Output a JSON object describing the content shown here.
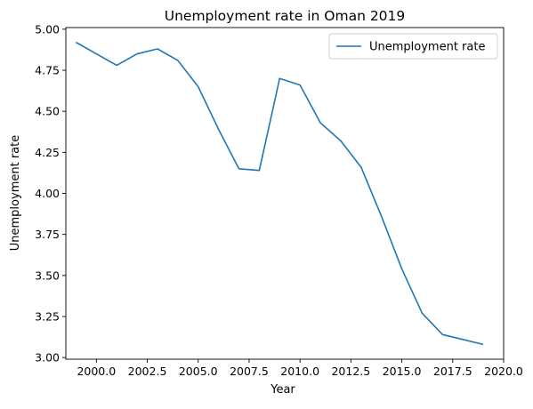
{
  "chart_data": {
    "type": "line",
    "title": "Unemployment rate in Oman 2019",
    "xlabel": "Year",
    "ylabel": "Unemployment rate",
    "xlim": [
      1998.5,
      2020.0
    ],
    "ylim": [
      2.99,
      5.01
    ],
    "x_ticks": [
      2000.0,
      2002.5,
      2005.0,
      2007.5,
      2010.0,
      2012.5,
      2015.0,
      2017.5,
      2020.0
    ],
    "x_tick_labels": [
      "2000.0",
      "2002.5",
      "2005.0",
      "2007.5",
      "2010.0",
      "2012.5",
      "2015.0",
      "2017.5",
      "2020.0"
    ],
    "y_ticks": [
      3.0,
      3.25,
      3.5,
      3.75,
      4.0,
      4.25,
      4.5,
      4.75,
      5.0
    ],
    "y_tick_labels": [
      "3.00",
      "3.25",
      "3.50",
      "3.75",
      "4.00",
      "4.25",
      "4.50",
      "4.75",
      "5.00"
    ],
    "grid": false,
    "legend_position": "top-right",
    "series": [
      {
        "name": "Unemployment rate",
        "color": "#1f77b4",
        "x": [
          1999,
          2000,
          2001,
          2002,
          2003,
          2004,
          2005,
          2006,
          2007,
          2008,
          2009,
          2010,
          2011,
          2012,
          2013,
          2014,
          2015,
          2016,
          2017,
          2018,
          2019
        ],
        "y": [
          4.92,
          4.85,
          4.78,
          4.85,
          4.88,
          4.81,
          4.65,
          4.39,
          4.15,
          4.14,
          4.7,
          4.66,
          4.43,
          4.32,
          4.16,
          3.86,
          3.54,
          3.27,
          3.14,
          3.11,
          3.08
        ]
      }
    ]
  }
}
